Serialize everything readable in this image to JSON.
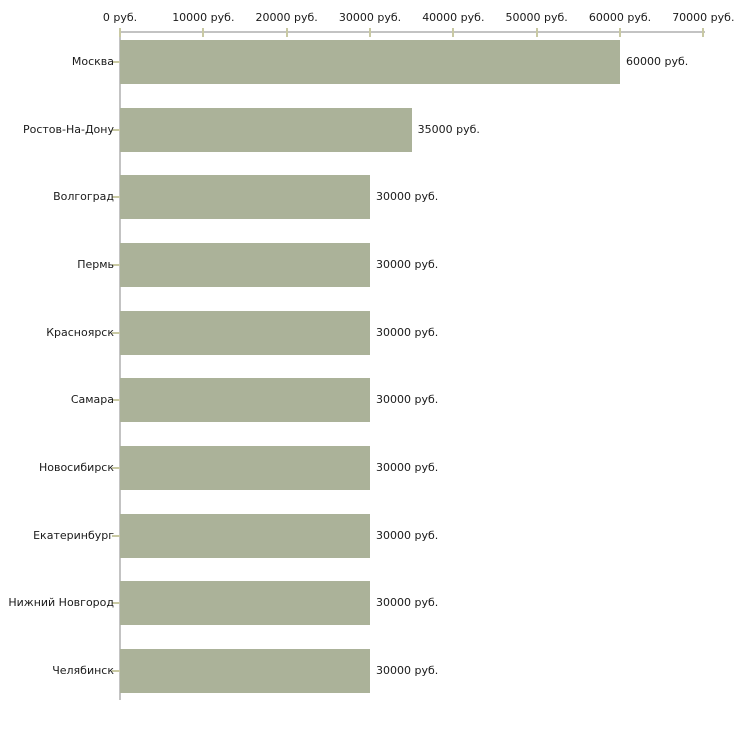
{
  "chart_data": {
    "type": "bar",
    "orientation": "horizontal",
    "title": "",
    "categories": [
      "Москва",
      "Ростов-На-Дону",
      "Волгоград",
      "Пермь",
      "Красноярск",
      "Самара",
      "Новосибирск",
      "Екатеринбург",
      "Нижний Новгород",
      "Челябинск"
    ],
    "values": [
      60000,
      35000,
      30000,
      30000,
      30000,
      30000,
      30000,
      30000,
      30000,
      30000
    ],
    "value_labels": [
      "60000 руб.",
      "35000 руб.",
      "30000 руб.",
      "30000 руб.",
      "30000 руб.",
      "30000 руб.",
      "30000 руб.",
      "30000 руб.",
      "30000 руб.",
      "30000 руб."
    ],
    "unit": "руб.",
    "x_axis": {
      "position": "top",
      "min": 0,
      "max": 70000,
      "tick_step": 10000,
      "tick_values": [
        0,
        10000,
        20000,
        30000,
        40000,
        50000,
        60000,
        70000
      ],
      "tick_labels": [
        "0 руб.",
        "10000 руб.",
        "20000 руб.",
        "30000 руб.",
        "40000 руб.",
        "50000 руб.",
        "60000 руб.",
        "70000 руб."
      ]
    },
    "grid": false,
    "legend": null,
    "colors": {
      "bar": "#abb299",
      "axis_line": "#c3c3c3",
      "tick_mark": "#c9c9a3",
      "text": "#1a1a1a",
      "background": "#ffffff"
    }
  }
}
